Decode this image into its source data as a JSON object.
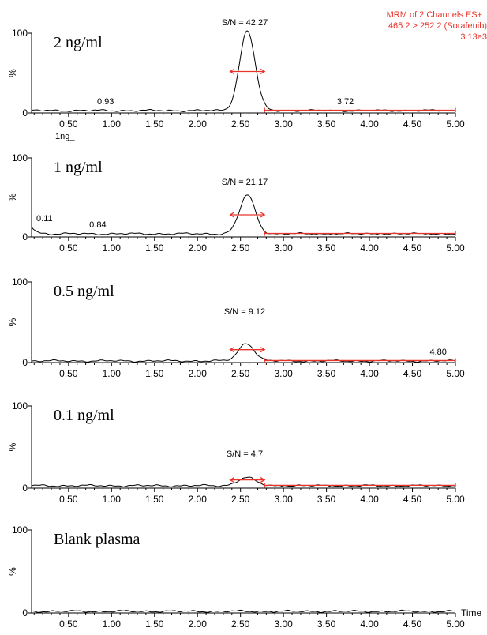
{
  "header": {
    "line1": "MRM of 2 Channels ES+",
    "line2": "465.2 > 252.2 (Sorafenib)",
    "line3": "3.13e3"
  },
  "x_axis_extra_label": "Time",
  "colors": {
    "trace": "#000000",
    "noise_marker": "#e8342a",
    "header": "#e8342a"
  },
  "chart_data": [
    {
      "type": "line",
      "title": "2 ng/ml",
      "ylabel": "%",
      "xlim": [
        0.07,
        5.0
      ],
      "ylim": [
        0,
        100
      ],
      "x_ticks": [
        "0.50",
        "1.00",
        "1.50",
        "2.00",
        "2.50",
        "3.00",
        "3.50",
        "4.00",
        "4.50",
        "5.00"
      ],
      "y_ticks": [
        "0",
        "100"
      ],
      "sn_label": "S/N = 42.27",
      "peak_labels": [
        {
          "x": 0.93,
          "text": "0.93"
        },
        {
          "x": 3.72,
          "text": "3.72"
        }
      ],
      "sub_label": "1ng_",
      "peak": {
        "center": 2.58,
        "height": 100,
        "width": 0.09
      },
      "baseline": 3,
      "noise_range": [
        2.78,
        5.0
      ],
      "signal_marker": [
        2.38,
        2.78
      ]
    },
    {
      "type": "line",
      "title": "1 ng/ml",
      "ylabel": "%",
      "xlim": [
        0.07,
        5.0
      ],
      "ylim": [
        0,
        100
      ],
      "x_ticks": [
        "0.50",
        "1.00",
        "1.50",
        "2.00",
        "2.50",
        "3.00",
        "3.50",
        "4.00",
        "4.50",
        "5.00"
      ],
      "y_ticks": [
        "0",
        "100"
      ],
      "sn_label": "S/N = 21.17",
      "peak_labels": [
        {
          "x": 0.11,
          "text": "0.11"
        },
        {
          "x": 0.84,
          "text": "0.84"
        }
      ],
      "peak": {
        "center": 2.58,
        "height": 49,
        "width": 0.09
      },
      "baseline": 4,
      "noise_range": [
        2.78,
        5.0
      ],
      "signal_marker": [
        2.38,
        2.78
      ]
    },
    {
      "type": "line",
      "title": "0.5 ng/ml",
      "ylabel": "%",
      "xlim": [
        0.07,
        5.0
      ],
      "ylim": [
        0,
        100
      ],
      "x_ticks": [
        "0.50",
        "1.00",
        "1.50",
        "2.00",
        "2.50",
        "3.00",
        "3.50",
        "4.00",
        "4.50",
        "5.00"
      ],
      "y_ticks": [
        "0",
        "100"
      ],
      "sn_label": "S/N = 9.12",
      "peak_labels": [
        {
          "x": 4.8,
          "text": "4.80"
        }
      ],
      "peak": {
        "center": 2.57,
        "height": 22,
        "width": 0.09
      },
      "baseline": 2,
      "noise_range": [
        2.78,
        5.0
      ],
      "signal_marker": [
        2.38,
        2.78
      ]
    },
    {
      "type": "line",
      "title": "0.1 ng/ml",
      "ylabel": "%",
      "xlim": [
        0.07,
        5.0
      ],
      "ylim": [
        0,
        100
      ],
      "x_ticks": [
        "0.50",
        "1.00",
        "1.50",
        "2.00",
        "2.50",
        "3.00",
        "3.50",
        "4.00",
        "4.50",
        "5.00"
      ],
      "y_ticks": [
        "0",
        "100"
      ],
      "sn_label": "S/N = 4.7",
      "peak_labels": [],
      "peak": {
        "center": 2.57,
        "height": 10,
        "width": 0.1
      },
      "baseline": 3,
      "noise_range": [
        2.78,
        5.0
      ],
      "signal_marker": [
        2.38,
        2.78
      ]
    },
    {
      "type": "line",
      "title": "Blank plasma",
      "ylabel": "%",
      "xlim": [
        0.07,
        5.0
      ],
      "ylim": [
        0,
        100
      ],
      "x_ticks": [
        "0.50",
        "1.00",
        "1.50",
        "2.00",
        "2.50",
        "3.00",
        "3.50",
        "4.00",
        "4.50",
        "5.00"
      ],
      "y_ticks": [
        "0",
        "100"
      ],
      "sn_label": "",
      "peak_labels": [],
      "peak": null,
      "baseline": 2,
      "noise_range": null,
      "signal_marker": null
    }
  ]
}
